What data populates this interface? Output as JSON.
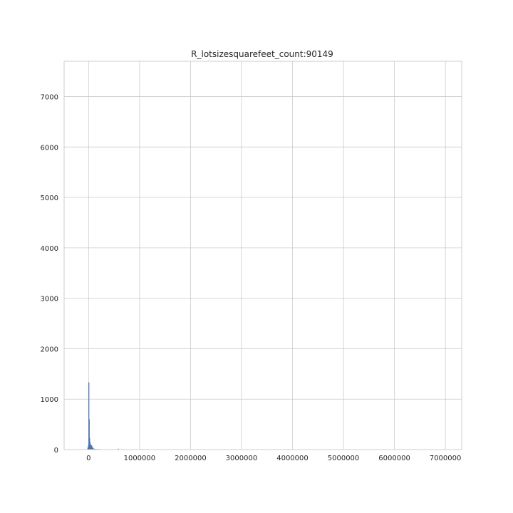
{
  "chart_data": {
    "type": "bar",
    "title": "R_lotsizesquarefeet_count:90149",
    "xlabel": "",
    "ylabel": "",
    "xlim": [
      -480000,
      7320000
    ],
    "ylim": [
      0,
      7700
    ],
    "grid": true,
    "xticks": [
      0,
      1000000,
      2000000,
      3000000,
      4000000,
      5000000,
      6000000,
      7000000
    ],
    "xtick_labels": [
      "0",
      "1000000",
      "2000000",
      "3000000",
      "4000000",
      "5000000",
      "6000000",
      "7000000"
    ],
    "yticks": [
      0,
      1000,
      2000,
      3000,
      4000,
      5000,
      6000,
      7000
    ],
    "ytick_labels": [
      "0",
      "1000",
      "2000",
      "3000",
      "4000",
      "5000",
      "6000",
      "7000"
    ],
    "bins": [
      {
        "x": -20000,
        "value": 40
      },
      {
        "x": -8000,
        "value": 90
      },
      {
        "x": 0,
        "value": 1330
      },
      {
        "x": 8000,
        "value": 600
      },
      {
        "x": 16000,
        "value": 230
      },
      {
        "x": 24000,
        "value": 150
      },
      {
        "x": 32000,
        "value": 110
      },
      {
        "x": 40000,
        "value": 90
      },
      {
        "x": 48000,
        "value": 70
      },
      {
        "x": 56000,
        "value": 80
      },
      {
        "x": 64000,
        "value": 50
      },
      {
        "x": 72000,
        "value": 45
      },
      {
        "x": 80000,
        "value": 30
      },
      {
        "x": 90000,
        "value": 20
      },
      {
        "x": 110000,
        "value": 15
      },
      {
        "x": 140000,
        "value": 12
      },
      {
        "x": 170000,
        "value": 10
      },
      {
        "x": 200000,
        "value": 8
      },
      {
        "x": 260000,
        "value": 5
      },
      {
        "x": 320000,
        "value": 4
      },
      {
        "x": 420000,
        "value": 3
      },
      {
        "x": 580000,
        "value": 15
      },
      {
        "x": 600000,
        "value": 5
      },
      {
        "x": 1000000,
        "value": 6
      }
    ]
  }
}
